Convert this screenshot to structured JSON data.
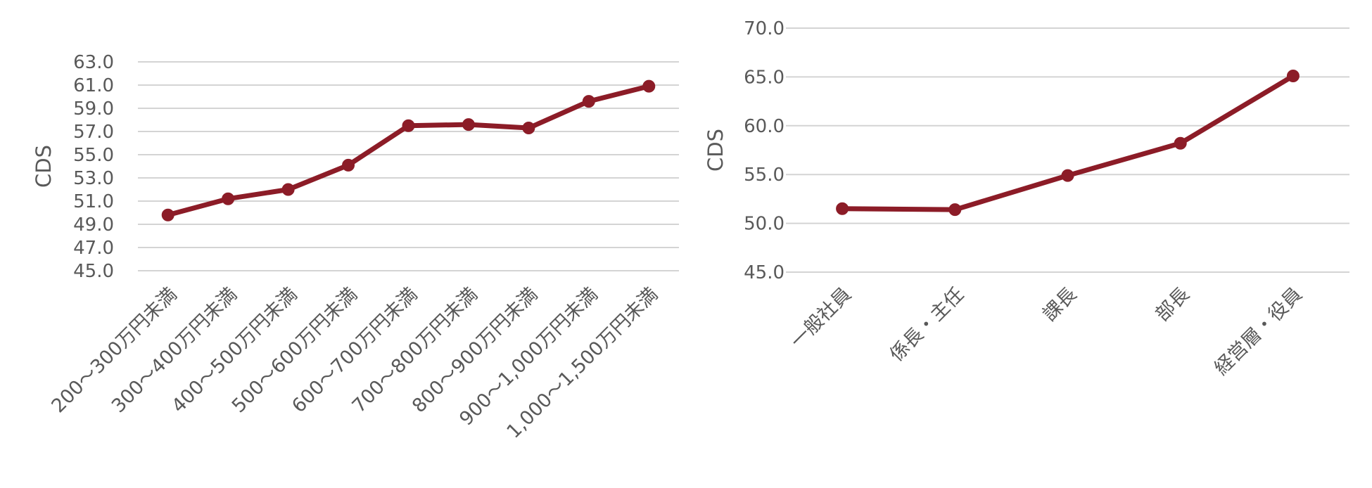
{
  "chart_data": [
    {
      "type": "line",
      "title": "",
      "xlabel": "",
      "ylabel": "CDS",
      "ylim": [
        45.0,
        63.0
      ],
      "yticks": [
        "45.0",
        "47.0",
        "49.0",
        "51.0",
        "53.0",
        "55.0",
        "57.0",
        "59.0",
        "61.0",
        "63.0"
      ],
      "grid": true,
      "categories": [
        "200～300万円未満",
        "300～400万円未満",
        "400～500万円未満",
        "500～600万円未満",
        "600～700万円未満",
        "700～800万円未満",
        "800～900万円未満",
        "900～1,000万円未満",
        "1,000～1,500万円未満"
      ],
      "series": [
        {
          "values": [
            49.8,
            51.2,
            52.0,
            54.1,
            57.5,
            57.6,
            57.3,
            59.6,
            60.9
          ]
        }
      ],
      "colors": {
        "line": "#8c1c27",
        "grid": "#d4d4d4",
        "text": "#595959"
      }
    },
    {
      "type": "line",
      "title": "",
      "xlabel": "",
      "ylabel": "CDS",
      "ylim": [
        45.0,
        70.0
      ],
      "yticks": [
        "45.0",
        "50.0",
        "55.0",
        "60.0",
        "65.0",
        "70.0"
      ],
      "grid": true,
      "categories": [
        "一般社員",
        "係長・主任",
        "課長",
        "部長",
        "経営層・役員"
      ],
      "series": [
        {
          "values": [
            51.5,
            51.4,
            54.9,
            58.2,
            65.1
          ]
        }
      ],
      "colors": {
        "line": "#8c1c27",
        "grid": "#d4d4d4",
        "text": "#595959"
      }
    }
  ]
}
